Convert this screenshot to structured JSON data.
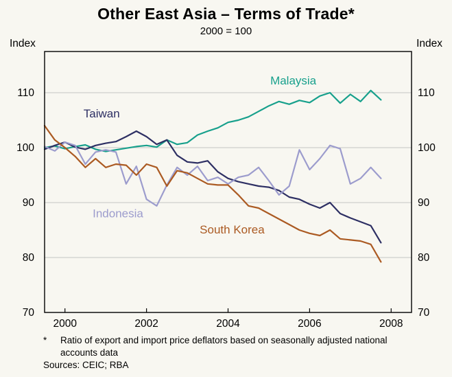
{
  "title": "Other East Asia – Terms of Trade*",
  "subtitle": "2000 = 100",
  "axis_unit_left": "Index",
  "axis_unit_right": "Index",
  "footnote_marker": "*",
  "footnote_text": "Ratio of export and import price deflators based on seasonally adjusted national accounts data",
  "sources": "Sources: CEIC; RBA",
  "colors": {
    "background": "#f8f7f1",
    "grid": "#c4c4c4",
    "axis": "#000000",
    "malaysia": "#17a08c",
    "taiwan": "#2d2f63",
    "indonesia": "#9c9ccd",
    "south_korea": "#ab5a22"
  },
  "chart_data": {
    "type": "line",
    "title": "Other East Asia – Terms of Trade*",
    "subtitle": "2000 = 100",
    "ylabel": "Index",
    "xlim": [
      1999.5,
      2008.5
    ],
    "ylim": [
      70,
      117.5
    ],
    "yticks": [
      70,
      80,
      90,
      100,
      110
    ],
    "gridlines": [
      80,
      90,
      100,
      110
    ],
    "xticks": [
      2000,
      2002,
      2004,
      2006,
      2008
    ],
    "grid": true,
    "legend_position": "inline-annotations",
    "x": [
      1999.5,
      1999.75,
      2000,
      2000.25,
      2000.5,
      2000.75,
      2001,
      2001.25,
      2001.5,
      2001.75,
      2002,
      2002.25,
      2002.5,
      2002.75,
      2003,
      2003.25,
      2003.5,
      2003.75,
      2004,
      2004.25,
      2004.5,
      2004.75,
      2005,
      2005.25,
      2005.5,
      2005.75,
      2006,
      2006.25,
      2006.5,
      2006.75,
      2007,
      2007.25,
      2007.5,
      2007.75
    ],
    "series": [
      {
        "name": "Malaysia",
        "color": "#17a08c",
        "label": {
          "x": 2005.6,
          "y": 111.5
        },
        "values": [
          100,
          100.3,
          99.8,
          100.2,
          100.5,
          99.7,
          99.3,
          99.6,
          99.9,
          100.2,
          100.4,
          100.1,
          101.4,
          100.6,
          100.9,
          102.3,
          103,
          103.6,
          104.6,
          105,
          105.6,
          106.6,
          107.6,
          108.4,
          107.9,
          108.6,
          108.2,
          109.4,
          110,
          108.1,
          109.7,
          108.4,
          110.4,
          108.7
        ]
      },
      {
        "name": "Taiwan",
        "color": "#2d2f63",
        "label": {
          "x": 2000.9,
          "y": 105.5
        },
        "values": [
          99.7,
          100.4,
          101,
          100.1,
          99.7,
          100.4,
          100.8,
          101.1,
          102,
          103,
          102,
          100.6,
          101.4,
          98.6,
          97.4,
          97.2,
          97.6,
          95.6,
          94.4,
          93.8,
          93.4,
          93,
          92.8,
          92.2,
          91,
          90.6,
          89.7,
          89,
          90,
          88,
          87.2,
          86.5,
          85.8,
          82.7
        ]
      },
      {
        "name": "Indonesia",
        "color": "#9c9ccd",
        "label": {
          "x": 2001.3,
          "y": 87.3
        },
        "values": [
          100.2,
          99.4,
          101,
          100.4,
          97,
          99.2,
          99.6,
          99.2,
          93.4,
          96.6,
          90.6,
          89.4,
          93.2,
          96.4,
          95,
          96.6,
          94,
          94.6,
          93.4,
          94.6,
          95,
          96.4,
          94,
          91.4,
          93,
          99.6,
          96,
          98,
          100.4,
          99.8,
          93.4,
          94.4,
          96.4,
          94.4
        ]
      },
      {
        "name": "South Korea",
        "color": "#ab5a22",
        "label": {
          "x": 2004.1,
          "y": 84.4
        },
        "values": [
          104,
          101.4,
          100,
          98.4,
          96.4,
          98,
          96.4,
          97,
          96.8,
          95,
          97,
          96.4,
          93,
          95.8,
          95.4,
          94.4,
          93.4,
          93.2,
          93.2,
          91.4,
          89.4,
          89,
          88,
          87,
          86,
          85,
          84.4,
          84,
          85,
          83.4,
          83.2,
          83,
          82.4,
          79.2
        ]
      }
    ]
  }
}
